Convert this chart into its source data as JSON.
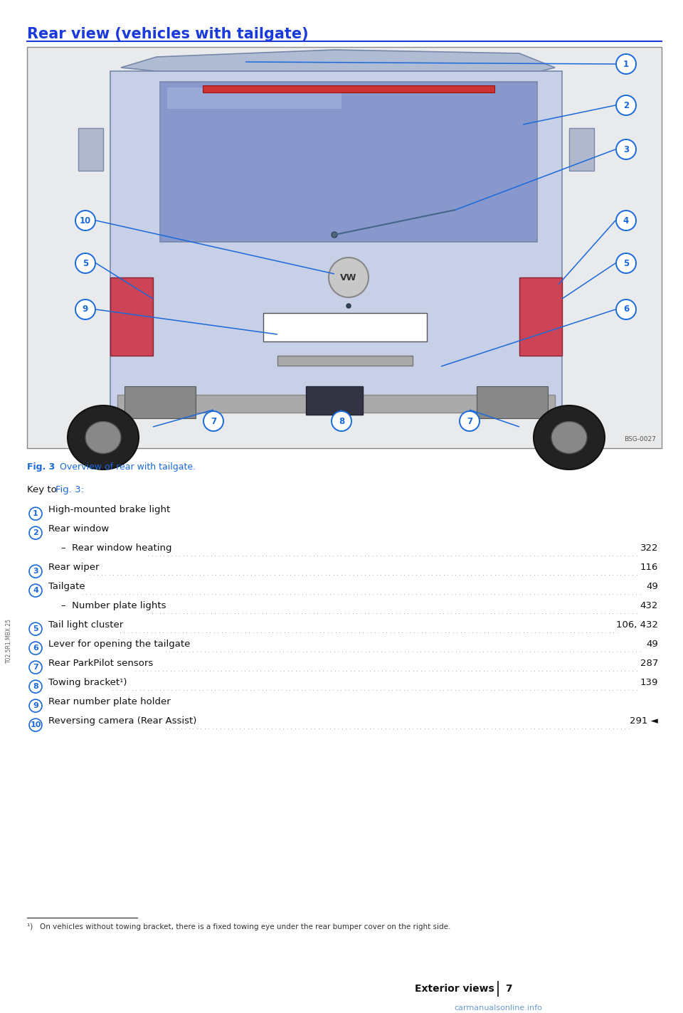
{
  "title": "Rear view (vehicles with tailgate)",
  "title_color": "#1a3adb",
  "title_fontsize": 15,
  "fig_caption_bold": "Fig. 3",
  "fig_caption_rest": "  Overview of rear with tailgate.",
  "fig_caption_color": "#1a6adb",
  "fig_caption_fontsize": 9,
  "key_intro": "Key to ",
  "key_intro_fig": "Fig. 3:",
  "key_intro_color": "#111111",
  "key_intro_fig_color": "#1a6adb",
  "key_intro_fontsize": 9.5,
  "bg_color": "#ffffff",
  "line_color": "#1a3adb",
  "items": [
    {
      "num": "1",
      "text": "High-mounted brake light",
      "page": "",
      "indent": false,
      "has_dots": false
    },
    {
      "num": "2",
      "text": "Rear window",
      "page": "",
      "indent": false,
      "has_dots": false
    },
    {
      "num": "",
      "text": "–  Rear window heating",
      "page": "322",
      "indent": true,
      "has_dots": true
    },
    {
      "num": "3",
      "text": "Rear wiper",
      "page": "116",
      "indent": false,
      "has_dots": true
    },
    {
      "num": "4",
      "text": "Tailgate",
      "page": "49",
      "indent": false,
      "has_dots": true
    },
    {
      "num": "",
      "text": "–  Number plate lights",
      "page": "432",
      "indent": true,
      "has_dots": true
    },
    {
      "num": "5",
      "text": "Tail light cluster",
      "page": "106, 432",
      "indent": false,
      "has_dots": true
    },
    {
      "num": "6",
      "text": "Lever for opening the tailgate",
      "page": "49",
      "indent": false,
      "has_dots": true
    },
    {
      "num": "7",
      "text": "Rear ParkPilot sensors",
      "page": "287",
      "indent": false,
      "has_dots": true
    },
    {
      "num": "8",
      "text": "Towing bracket¹)",
      "page": "139",
      "indent": false,
      "has_dots": true
    },
    {
      "num": "9",
      "text": "Rear number plate holder",
      "page": "",
      "indent": false,
      "has_dots": false
    },
    {
      "num": "10",
      "text": "Reversing camera (Rear Assist)",
      "page": "291 ◄",
      "indent": false,
      "has_dots": true
    }
  ],
  "footnote_text": "¹)   On vehicles without towing bracket, there is a fixed towing eye under the rear bumper cover on the right side.",
  "footnote_fontsize": 7.5,
  "footer_section": "Exterior views",
  "footer_page": "7",
  "footer_fontsize": 10,
  "watermark": "carmanualsonline.info",
  "watermark_color": "#5588cc",
  "circle_color": "#1a6adb",
  "item_fontsize": 9.5,
  "left_margin_text": "T02.5R1.MBX.25",
  "van_body_color": "#c8d0e8",
  "van_roof_color": "#b0bcd4",
  "van_window_color": "#8898cc",
  "van_border_color": "#7788aa",
  "van_tail_color": "#9aaac4",
  "van_bumper_color": "#b0b8c8",
  "van_lower_color": "#d0d8e8",
  "callout_line_color": "#1a6adb",
  "image_bg_color": "#e8eaec"
}
